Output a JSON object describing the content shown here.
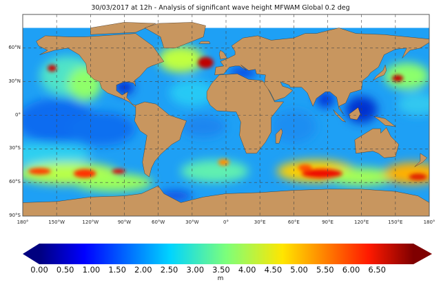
{
  "title": "30/03/2017 at 12h - Analysis of significant wave height MFWAM Global 0.2 deg",
  "map": {
    "projection": "equirectangular",
    "extent": {
      "lon": [
        -180,
        180
      ],
      "lat": [
        -90,
        90
      ]
    },
    "grid": true,
    "land_color": "#c8965f",
    "lat_labels": [
      "60°N",
      "30°N",
      "0°",
      "30°S",
      "60°S",
      "90°S"
    ],
    "lat_values": [
      60,
      30,
      0,
      -30,
      -60,
      -90
    ],
    "lon_labels": [
      "180°",
      "150°W",
      "120°W",
      "90°W",
      "60°W",
      "30°W",
      "0°",
      "30°E",
      "60°E",
      "90°E",
      "120°E",
      "150°E",
      "180°"
    ],
    "lon_values": [
      -180,
      -150,
      -120,
      -90,
      -60,
      -30,
      0,
      30,
      60,
      90,
      120,
      150,
      180
    ]
  },
  "colorbar": {
    "colormap": "jet",
    "range": [
      0,
      7.2
    ],
    "extend": "both",
    "ticks": [
      "0.00",
      "0.50",
      "1.00",
      "1.50",
      "2.00",
      "2.50",
      "3.00",
      "3.50",
      "4.00",
      "4.50",
      "5.00",
      "5.50",
      "6.00",
      "6.50"
    ],
    "unit": "m"
  }
}
